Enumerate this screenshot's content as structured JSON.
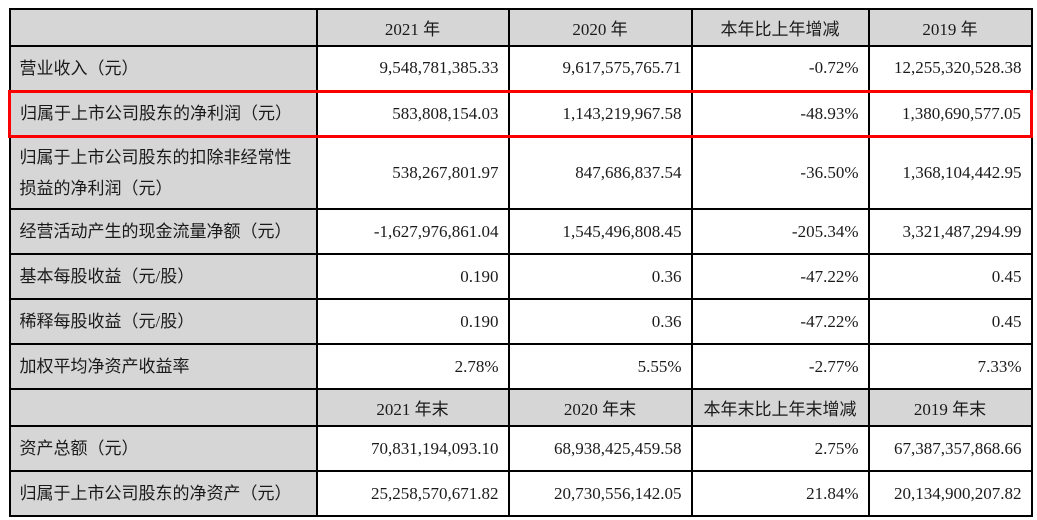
{
  "colors": {
    "shaded_cell_bg": "#d6d6d6",
    "grid_border": "#000000",
    "highlight_box": "#fb0000",
    "text": "#1a1a1a"
  },
  "table": {
    "name": "主要会计数据和财务指标",
    "sections": [
      {
        "header": {
          "corner": "",
          "cols": [
            "2021 年",
            "2020 年",
            "本年比上年增减",
            "2019 年"
          ]
        },
        "rows": [
          {
            "label": "营业收入（元）",
            "values": [
              "9,548,781,385.33",
              "9,617,575,765.71",
              "-0.72%",
              "12,255,320,528.38"
            ],
            "highlight": false
          },
          {
            "label": "归属于上市公司股东的净利润（元）",
            "values": [
              "583,808,154.03",
              "1,143,219,967.58",
              "-48.93%",
              "1,380,690,577.05"
            ],
            "highlight": true
          },
          {
            "label": "归属于上市公司股东的扣除非经常性损益的净利润（元）",
            "values": [
              "538,267,801.97",
              "847,686,837.54",
              "-36.50%",
              "1,368,104,442.95"
            ],
            "highlight": false
          },
          {
            "label": "经营活动产生的现金流量净额（元）",
            "values": [
              "-1,627,976,861.04",
              "1,545,496,808.45",
              "-205.34%",
              "3,321,487,294.99"
            ],
            "highlight": false
          },
          {
            "label": "基本每股收益（元/股）",
            "values": [
              "0.190",
              "0.36",
              "-47.22%",
              "0.45"
            ],
            "highlight": false
          },
          {
            "label": "稀释每股收益（元/股）",
            "values": [
              "0.190",
              "0.36",
              "-47.22%",
              "0.45"
            ],
            "highlight": false
          },
          {
            "label": "加权平均净资产收益率",
            "values": [
              "2.78%",
              "5.55%",
              "-2.77%",
              "7.33%"
            ],
            "highlight": false
          }
        ]
      },
      {
        "header": {
          "corner": "",
          "cols": [
            "2021 年末",
            "2020 年末",
            "本年末比上年末增减",
            "2019 年末"
          ]
        },
        "rows": [
          {
            "label": "资产总额（元）",
            "values": [
              "70,831,194,093.10",
              "68,938,425,459.58",
              "2.75%",
              "67,387,357,868.66"
            ],
            "highlight": false
          },
          {
            "label": "归属于上市公司股东的净资产（元）",
            "values": [
              "25,258,570,671.82",
              "20,730,556,142.05",
              "21.84%",
              "20,134,900,207.82"
            ],
            "highlight": false
          }
        ]
      }
    ]
  }
}
